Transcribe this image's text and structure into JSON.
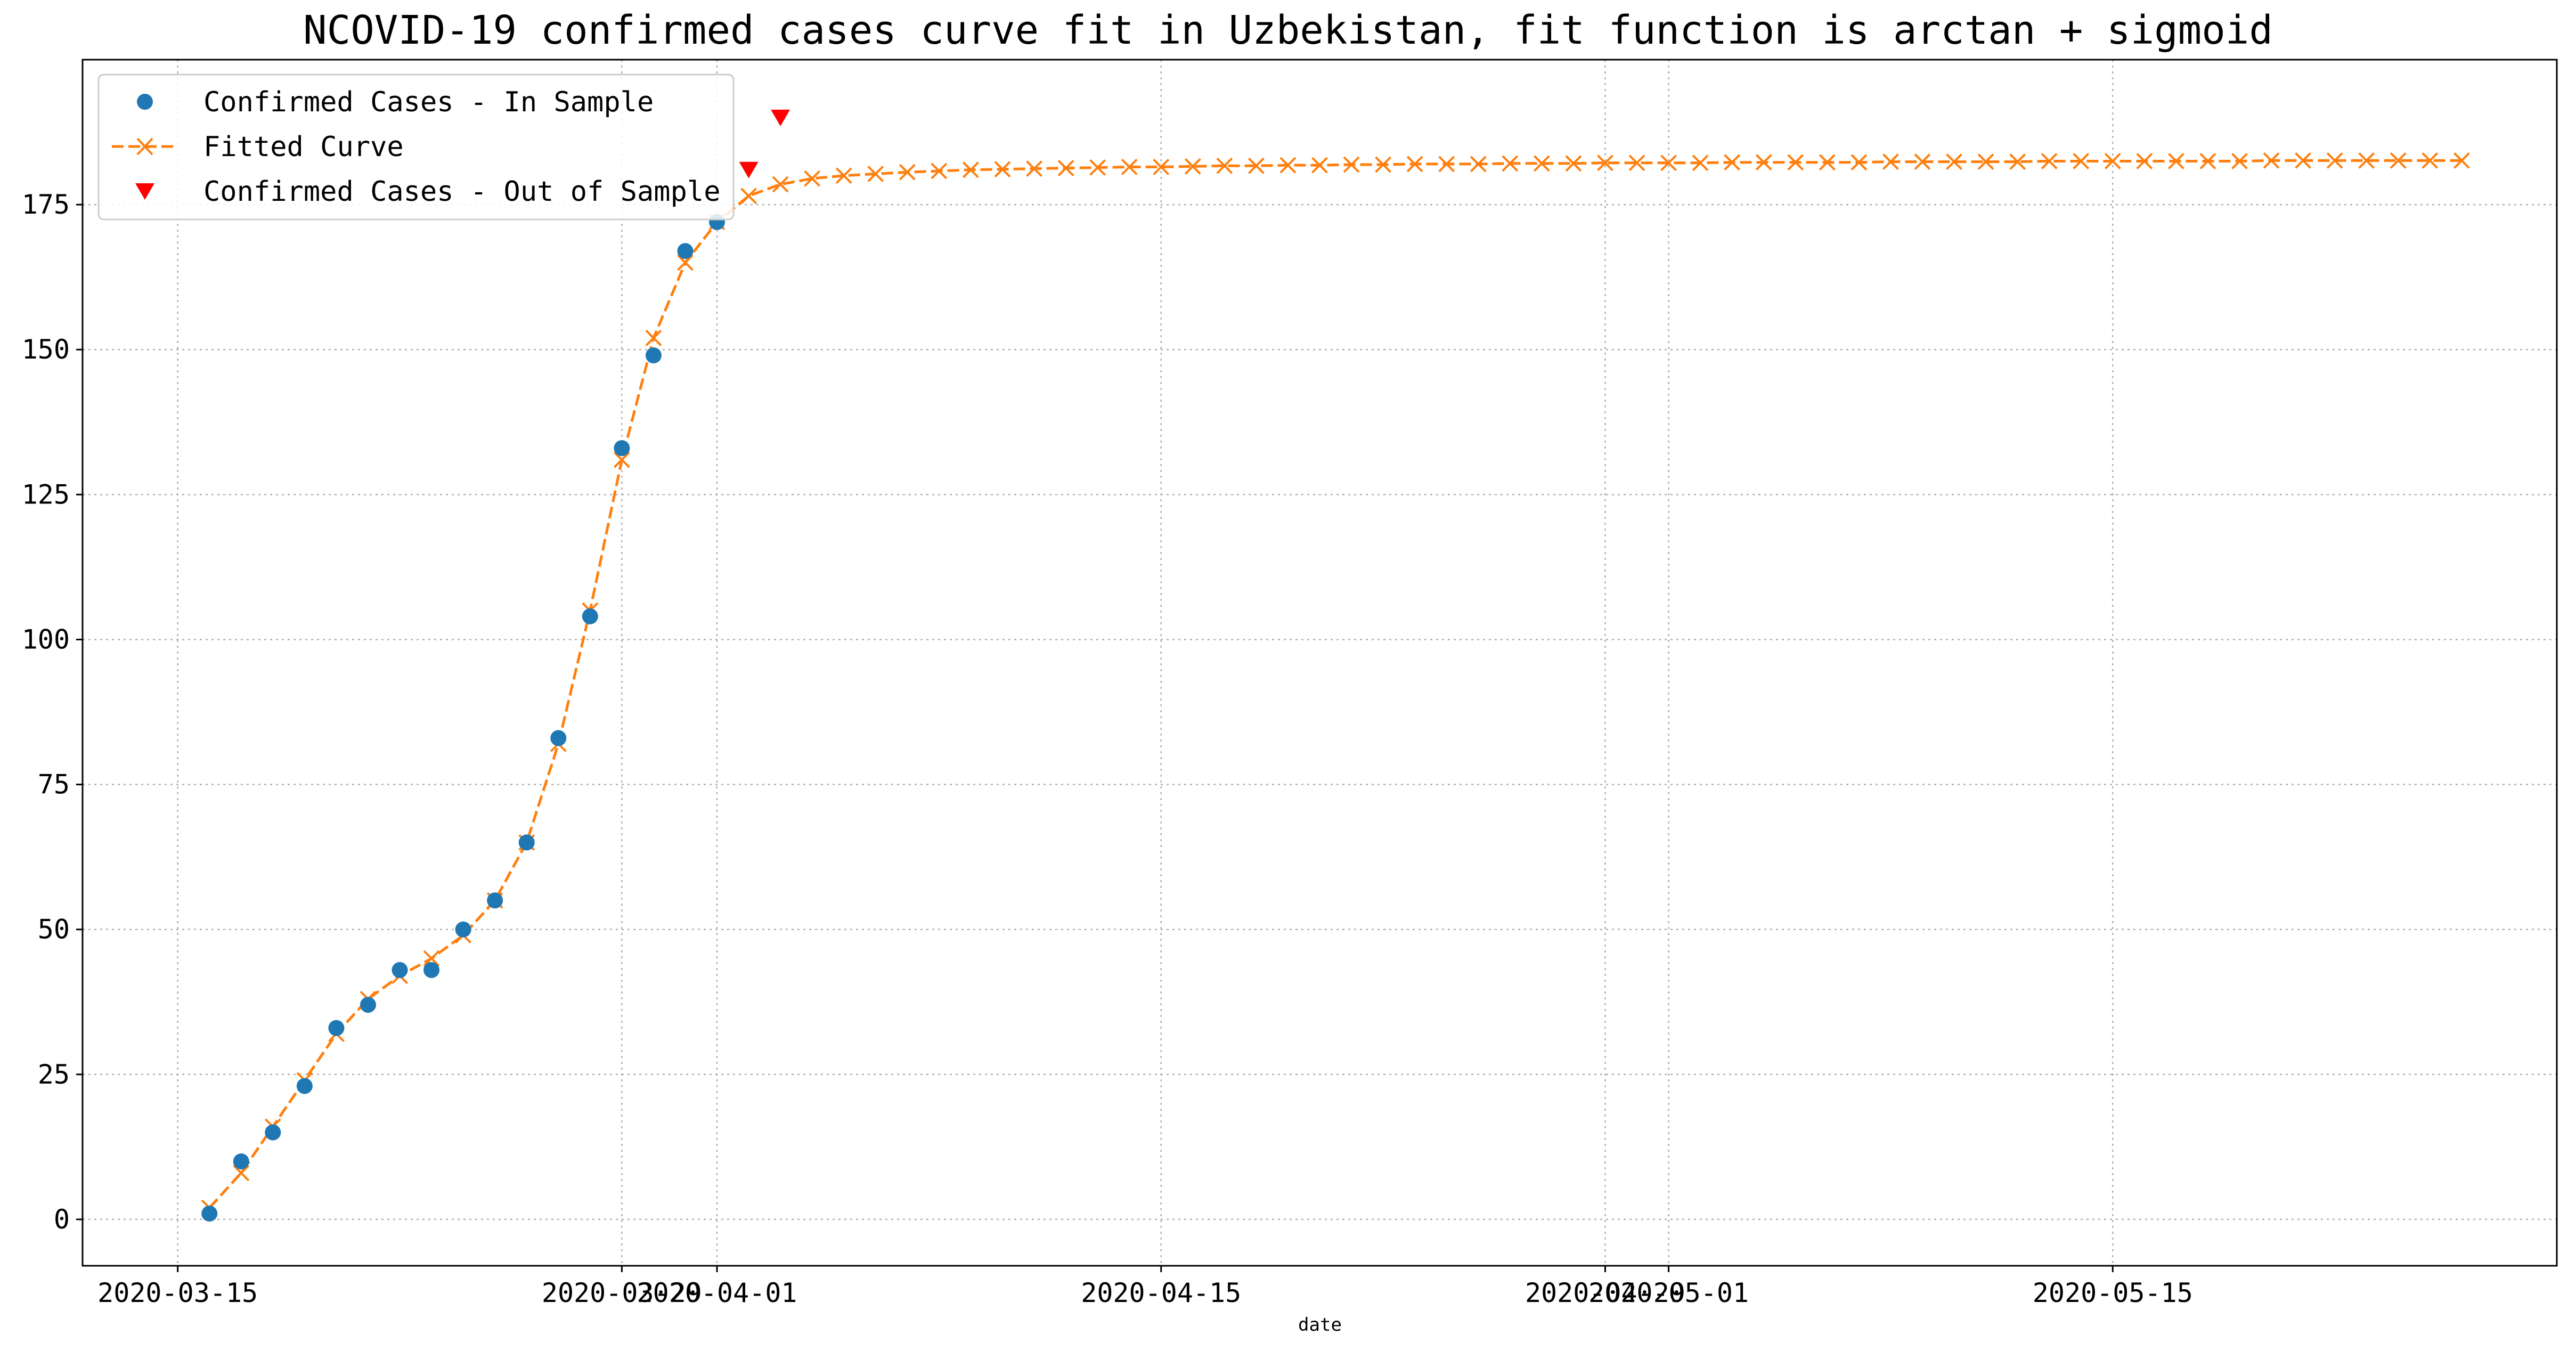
{
  "chart_data": {
    "type": "line",
    "title": "NCOVID-19 confirmed cases curve fit in Uzbekistan, fit function is arctan + sigmoid",
    "xlabel": "date",
    "ylabel": "",
    "x_start_date": "2020-03-12",
    "xlim": [
      "2020-03-12",
      "2020-05-29"
    ],
    "ylim": [
      -8,
      200
    ],
    "grid": true,
    "legend_position": "upper left",
    "x_ticks": [
      {
        "date": "2020-03-15",
        "label": "2020-03-15"
      },
      {
        "date": "2020-03-29",
        "label": "2020-03-29"
      },
      {
        "date": "2020-04-01",
        "label": "2020-04-01"
      },
      {
        "date": "2020-04-15",
        "label": "2020-04-15"
      },
      {
        "date": "2020-04-29",
        "label": "2020-04-29"
      },
      {
        "date": "2020-05-01",
        "label": "2020-05-01"
      },
      {
        "date": "2020-05-15",
        "label": "2020-05-15"
      }
    ],
    "y_ticks": [
      0,
      25,
      50,
      75,
      100,
      125,
      150,
      175
    ],
    "series": [
      {
        "name": "Confirmed Cases - In Sample",
        "kind": "scatter",
        "marker": "circle",
        "color": "#1f77b4",
        "start_date": "2020-03-16",
        "values": [
          1,
          10,
          15,
          23,
          33,
          37,
          43,
          43,
          50,
          55,
          65,
          83,
          104,
          133,
          149,
          167,
          172
        ]
      },
      {
        "name": "Fitted Curve",
        "kind": "line",
        "marker": "x",
        "line_style": "dashed",
        "color": "#ff7f0e",
        "start_date": "2020-03-16",
        "values": [
          2,
          8,
          16,
          24,
          32,
          38,
          42,
          45,
          49,
          55,
          65,
          82,
          105,
          131,
          152,
          165,
          172,
          176.5,
          178.5,
          179.5,
          180.0,
          180.3,
          180.6,
          180.8,
          181.0,
          181.1,
          181.2,
          181.3,
          181.4,
          181.5,
          181.5,
          181.6,
          181.7,
          181.7,
          181.8,
          181.8,
          181.9,
          181.9,
          182.0,
          182.0,
          182.0,
          182.1,
          182.1,
          182.1,
          182.2,
          182.2,
          182.2,
          182.2,
          182.3,
          182.3,
          182.3,
          182.3,
          182.3,
          182.4,
          182.4,
          182.4,
          182.4,
          182.4,
          182.5,
          182.5,
          182.5,
          182.5,
          182.5,
          182.5,
          182.5,
          182.6,
          182.6,
          182.6,
          182.6,
          182.6,
          182.6,
          182.6
        ]
      },
      {
        "name": "Confirmed Cases - Out of Sample",
        "kind": "scatter",
        "marker": "triangle-down",
        "color": "#ff0000",
        "start_date": "2020-04-02",
        "values": [
          181,
          190
        ]
      }
    ]
  }
}
